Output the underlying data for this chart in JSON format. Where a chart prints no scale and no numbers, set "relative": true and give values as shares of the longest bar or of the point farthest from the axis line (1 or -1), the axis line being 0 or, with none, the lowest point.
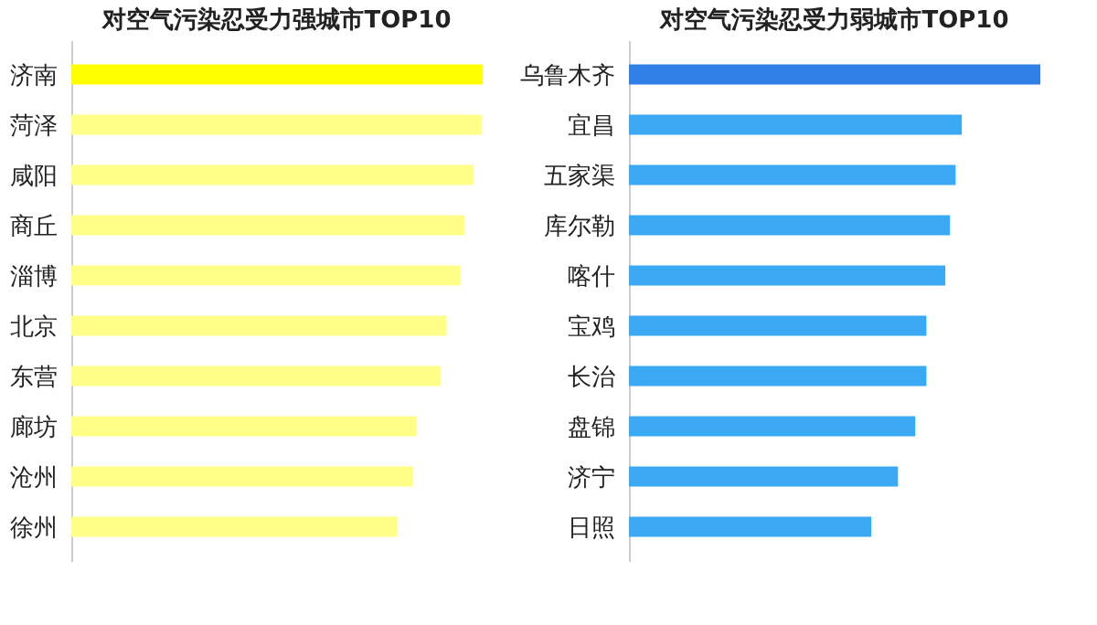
{
  "chart_data": [
    {
      "type": "bar",
      "orientation": "horizontal",
      "relative": true,
      "title": "对空气污染忍受力强城市TOP10",
      "categories": [
        "济南",
        "菏泽",
        "咸阳",
        "商丘",
        "淄博",
        "北京",
        "东营",
        "廊坊",
        "沧州",
        "徐州"
      ],
      "values": [
        1,
        0.997,
        0.978,
        0.956,
        0.946,
        0.912,
        0.898,
        0.838,
        0.829,
        0.792
      ],
      "colors": [
        "#ffff00",
        "#ffff88",
        "#ffff88",
        "#ffff88",
        "#ffff88",
        "#ffff88",
        "#ffff88",
        "#ffff88",
        "#ffff88",
        "#ffff88"
      ]
    },
    {
      "type": "bar",
      "orientation": "horizontal",
      "relative": true,
      "title": "对空气污染忍受力弱城市TOP10",
      "categories": [
        "乌鲁木齐",
        "宜昌",
        "五家渠",
        "库尔勒",
        "喀什",
        "宝鸡",
        "长治",
        "盘锦",
        "济宁",
        "日照"
      ],
      "values": [
        1,
        0.809,
        0.794,
        0.78,
        0.769,
        0.723,
        0.723,
        0.696,
        0.654,
        0.589
      ],
      "colors": [
        "#2f7fe6",
        "#3aa8f2",
        "#3aa8f2",
        "#3aa8f2",
        "#3aa8f2",
        "#3aa8f2",
        "#3aa8f2",
        "#3aa8f2",
        "#3aa8f2",
        "#3aa8f2"
      ]
    }
  ]
}
